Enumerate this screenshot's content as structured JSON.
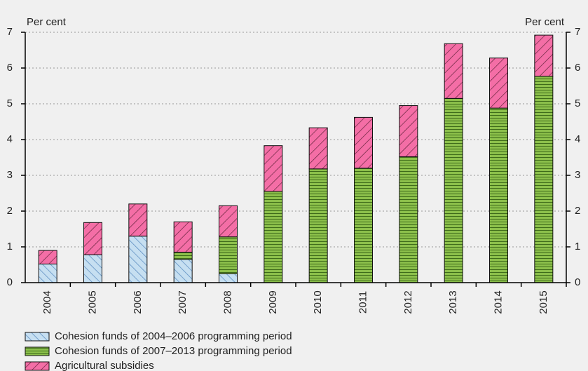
{
  "chart_data": {
    "type": "stacked_bar",
    "y_label": "Per cent",
    "y2_label": "Per cent",
    "categories": [
      "2004",
      "2005",
      "2006",
      "2007",
      "2008",
      "2009",
      "2010",
      "2011",
      "2012",
      "2013",
      "2014",
      "2015"
    ],
    "series": [
      {
        "name": "Cohesion funds of 2004–2006 programming period",
        "color": "#c6dff1",
        "pattern": "diagonal-back",
        "values": [
          0.52,
          0.78,
          1.3,
          0.65,
          0.25,
          null,
          null,
          null,
          null,
          null,
          null,
          null
        ]
      },
      {
        "name": "Cohesion funds of 2007–2013 programming period",
        "color": "#8cc04b",
        "pattern": "horizontal",
        "values": [
          null,
          null,
          null,
          0.2,
          1.03,
          2.55,
          3.18,
          3.2,
          3.52,
          5.15,
          4.88,
          5.77
        ]
      },
      {
        "name": "Agricultural subsidies",
        "color": "#f46ea6",
        "pattern": "diagonal",
        "values": [
          0.38,
          0.9,
          0.9,
          0.85,
          0.87,
          1.28,
          1.15,
          1.42,
          1.43,
          1.53,
          1.4,
          1.15
        ]
      }
    ],
    "ylim": [
      0,
      7
    ],
    "yticks": [
      0,
      1,
      2,
      3,
      4,
      5,
      6,
      7
    ],
    "y2lim": [
      0,
      7
    ],
    "y2ticks": [
      0,
      1,
      2,
      3,
      4,
      5,
      6,
      7
    ],
    "grid": true
  }
}
